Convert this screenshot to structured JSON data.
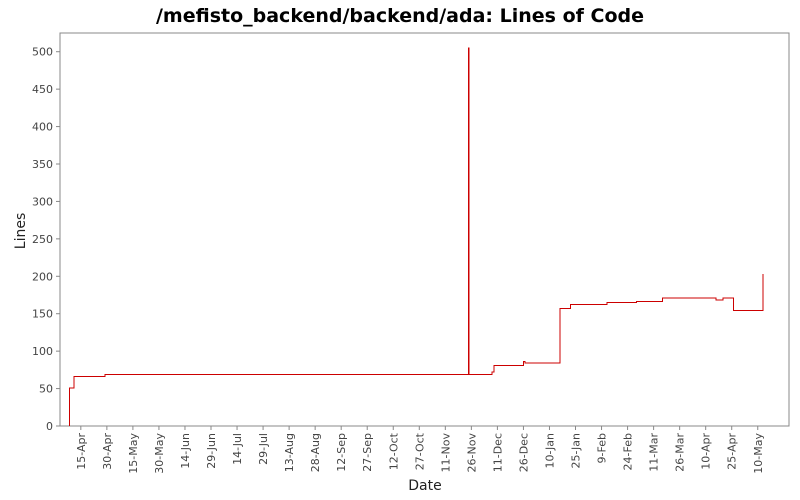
{
  "chart_data": {
    "type": "line",
    "title": "/mefisto_backend/backend/ada: Lines of Code",
    "xlabel": "Date",
    "ylabel": "Lines",
    "ylim": [
      0,
      525
    ],
    "yticks": [
      0,
      50,
      100,
      150,
      200,
      250,
      300,
      350,
      400,
      450,
      500
    ],
    "xlim_days": [
      -12,
      408
    ],
    "xticks": [
      {
        "label": "15-Apr",
        "day": 0
      },
      {
        "label": "30-Apr",
        "day": 15
      },
      {
        "label": "15-May",
        "day": 30
      },
      {
        "label": "30-May",
        "day": 45
      },
      {
        "label": "14-Jun",
        "day": 60
      },
      {
        "label": "29-Jun",
        "day": 75
      },
      {
        "label": "14-Jul",
        "day": 90
      },
      {
        "label": "29-Jul",
        "day": 105
      },
      {
        "label": "13-Aug",
        "day": 120
      },
      {
        "label": "28-Aug",
        "day": 135
      },
      {
        "label": "12-Sep",
        "day": 150
      },
      {
        "label": "27-Sep",
        "day": 165
      },
      {
        "label": "12-Oct",
        "day": 180
      },
      {
        "label": "27-Oct",
        "day": 195
      },
      {
        "label": "11-Nov",
        "day": 210
      },
      {
        "label": "26-Nov",
        "day": 225
      },
      {
        "label": "11-Dec",
        "day": 240
      },
      {
        "label": "26-Dec",
        "day": 255
      },
      {
        "label": "10-Jan",
        "day": 270
      },
      {
        "label": "25-Jan",
        "day": 285
      },
      {
        "label": "9-Feb",
        "day": 300
      },
      {
        "label": "24-Feb",
        "day": 315
      },
      {
        "label": "11-Mar",
        "day": 330
      },
      {
        "label": "26-Mar",
        "day": 345
      },
      {
        "label": "10-Apr",
        "day": 360
      },
      {
        "label": "25-Apr",
        "day": 375
      },
      {
        "label": "10-May",
        "day": 390
      }
    ],
    "series": [
      {
        "color": "#cc0000",
        "step": true,
        "points": [
          {
            "day": -6.5,
            "value": 0
          },
          {
            "day": -6.5,
            "value": 51
          },
          {
            "day": -4,
            "value": 66
          },
          {
            "day": 14,
            "value": 69
          },
          {
            "day": 223,
            "value": 69
          },
          {
            "day": 223.3,
            "value": 505
          },
          {
            "day": 223.6,
            "value": 69
          },
          {
            "day": 237,
            "value": 72
          },
          {
            "day": 238,
            "value": 81
          },
          {
            "day": 255,
            "value": 86
          },
          {
            "day": 256,
            "value": 84
          },
          {
            "day": 276,
            "value": 157
          },
          {
            "day": 282,
            "value": 162
          },
          {
            "day": 303,
            "value": 165
          },
          {
            "day": 320,
            "value": 166
          },
          {
            "day": 335,
            "value": 171
          },
          {
            "day": 366,
            "value": 168
          },
          {
            "day": 370,
            "value": 171
          },
          {
            "day": 376,
            "value": 154
          },
          {
            "day": 393,
            "value": 203
          }
        ]
      }
    ]
  }
}
